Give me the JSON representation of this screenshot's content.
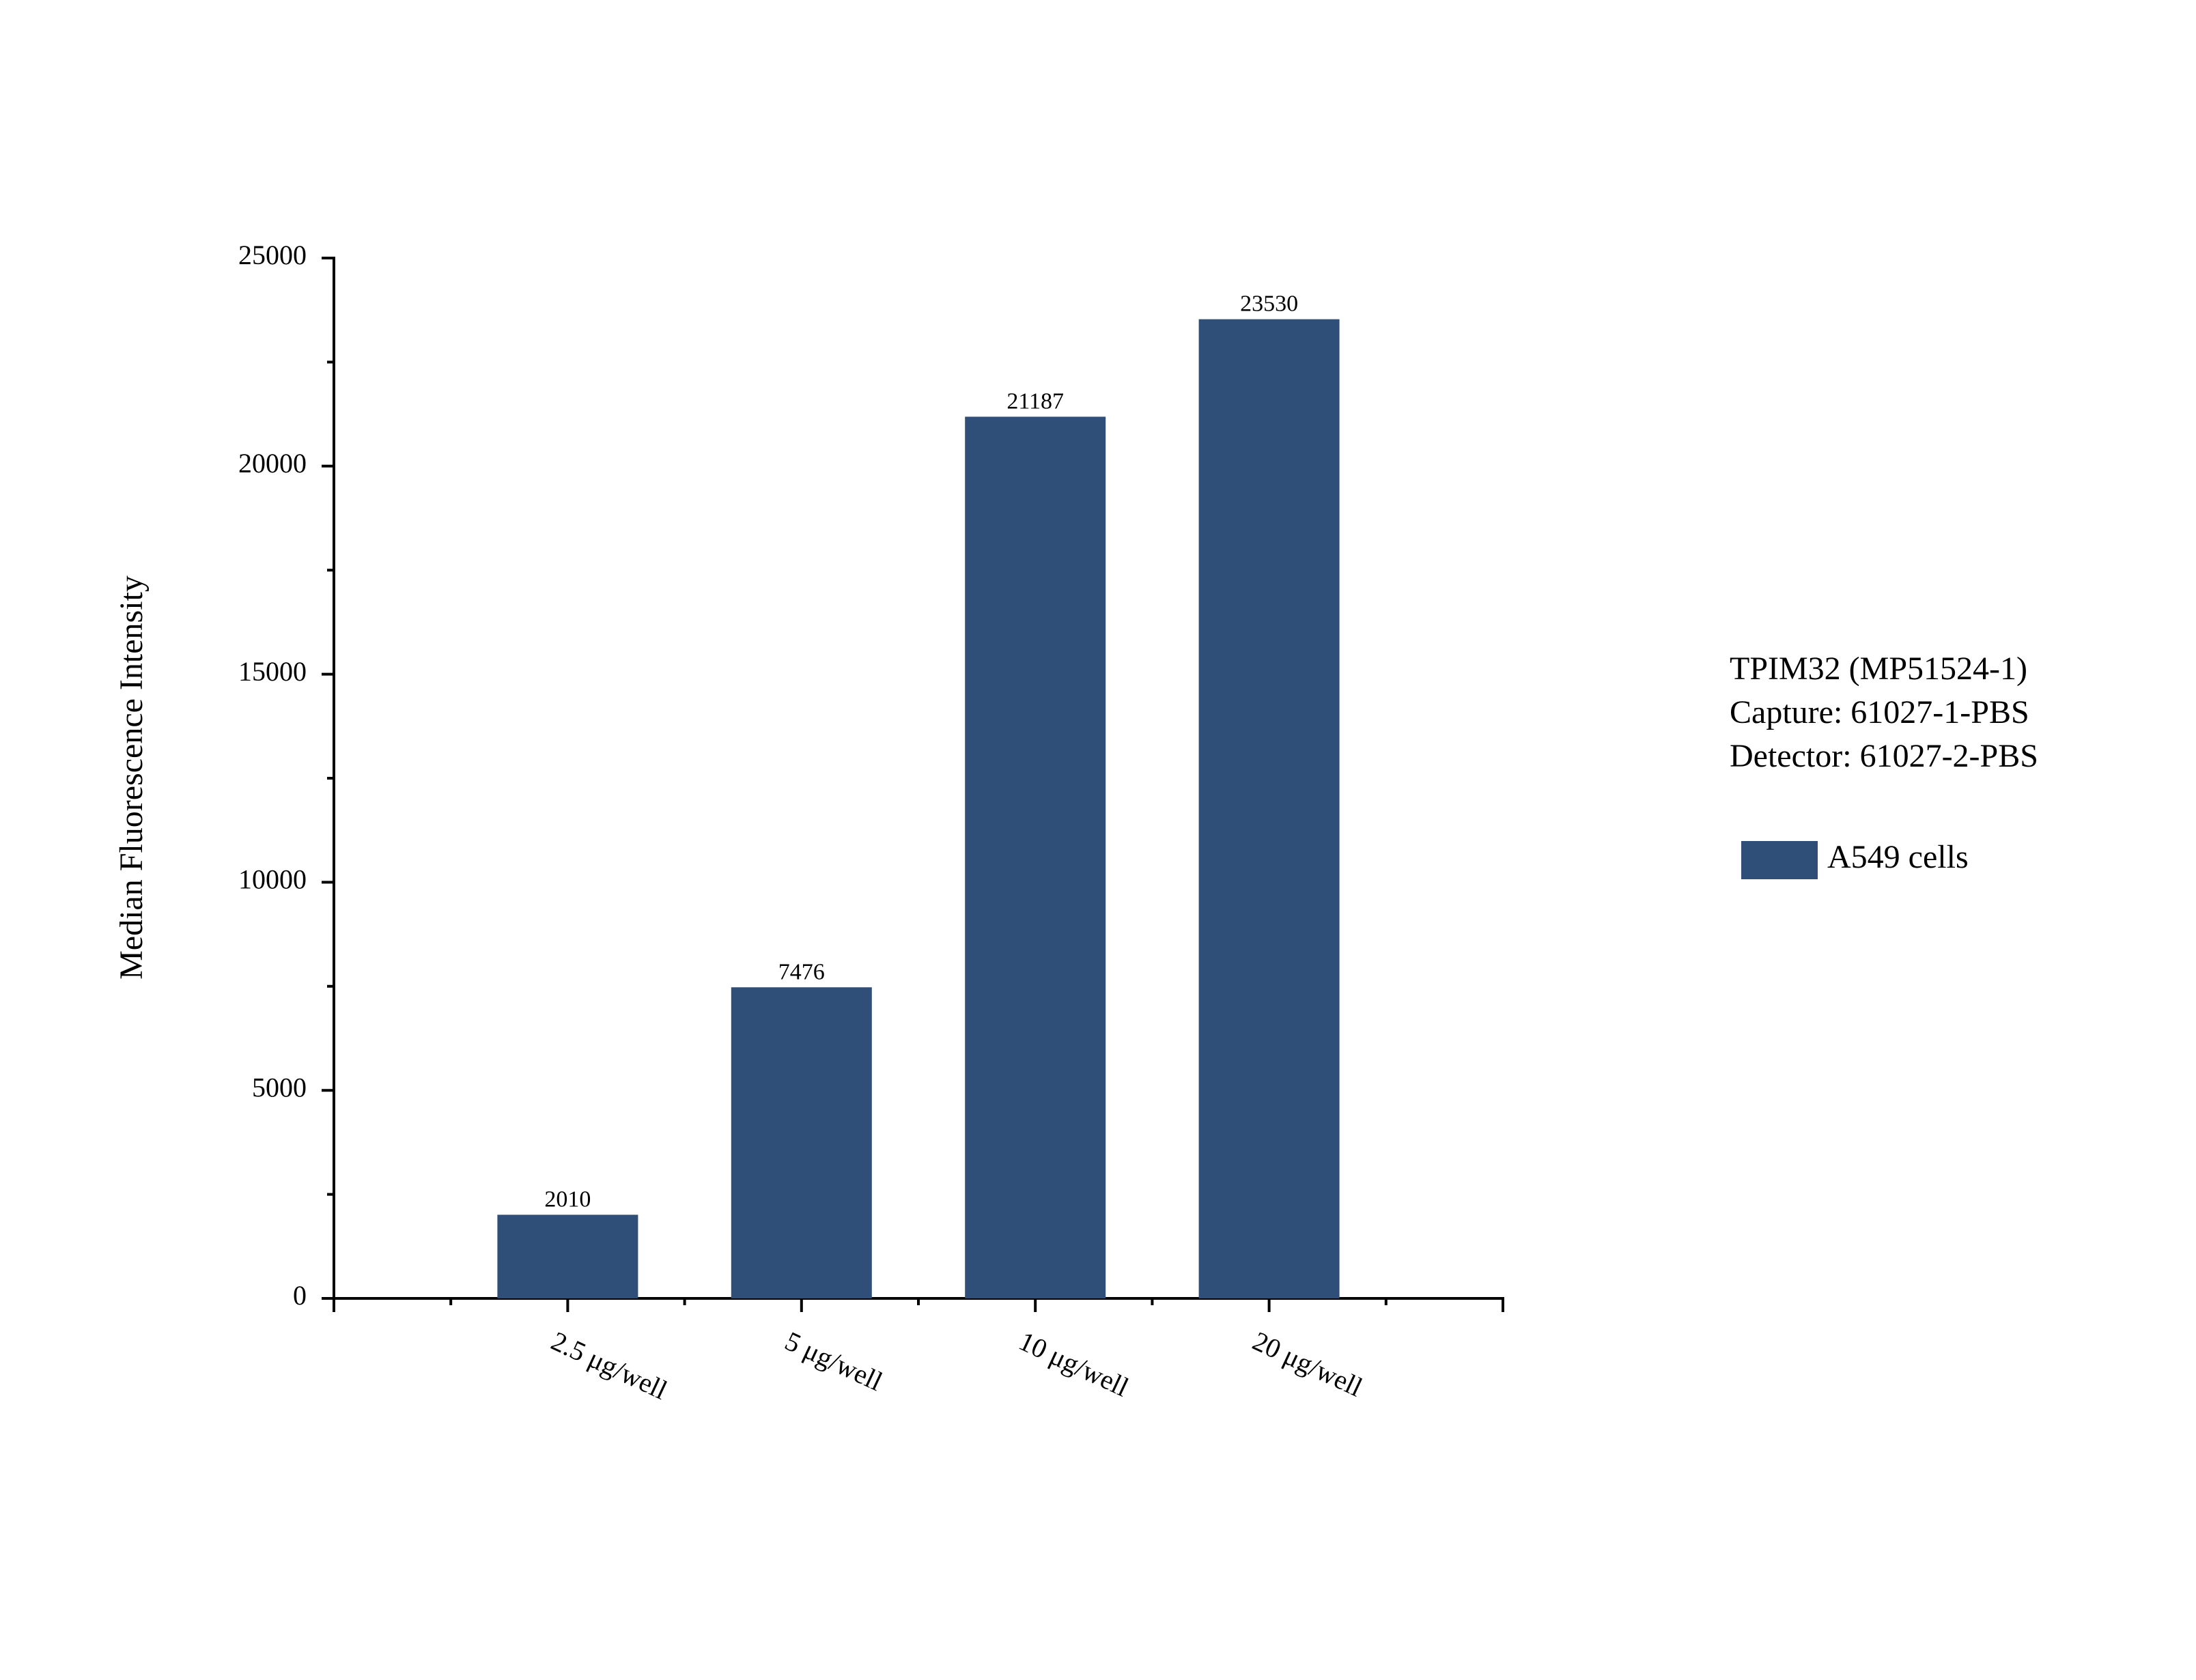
{
  "chart_data": {
    "type": "bar",
    "y_label": "Median Fluorescence Intensity",
    "categories": [
      "2.5 μg/well",
      "5 μg/well",
      "10 μg/well",
      "20 μg/well"
    ],
    "series": [
      {
        "name": "A549 cells",
        "color": "#304f78",
        "values": [
          2010,
          7476,
          21187,
          23530
        ]
      }
    ],
    "ylim": [
      0,
      25000
    ],
    "yticks": [
      0,
      5000,
      10000,
      15000,
      20000,
      25000
    ],
    "annotations": [
      "TPIM32 (MP51524-1)",
      "Capture: 61027-1-PBS",
      "Detector: 61027-2-PBS"
    ],
    "show_value_labels": true,
    "grid": false,
    "legend": "right"
  }
}
